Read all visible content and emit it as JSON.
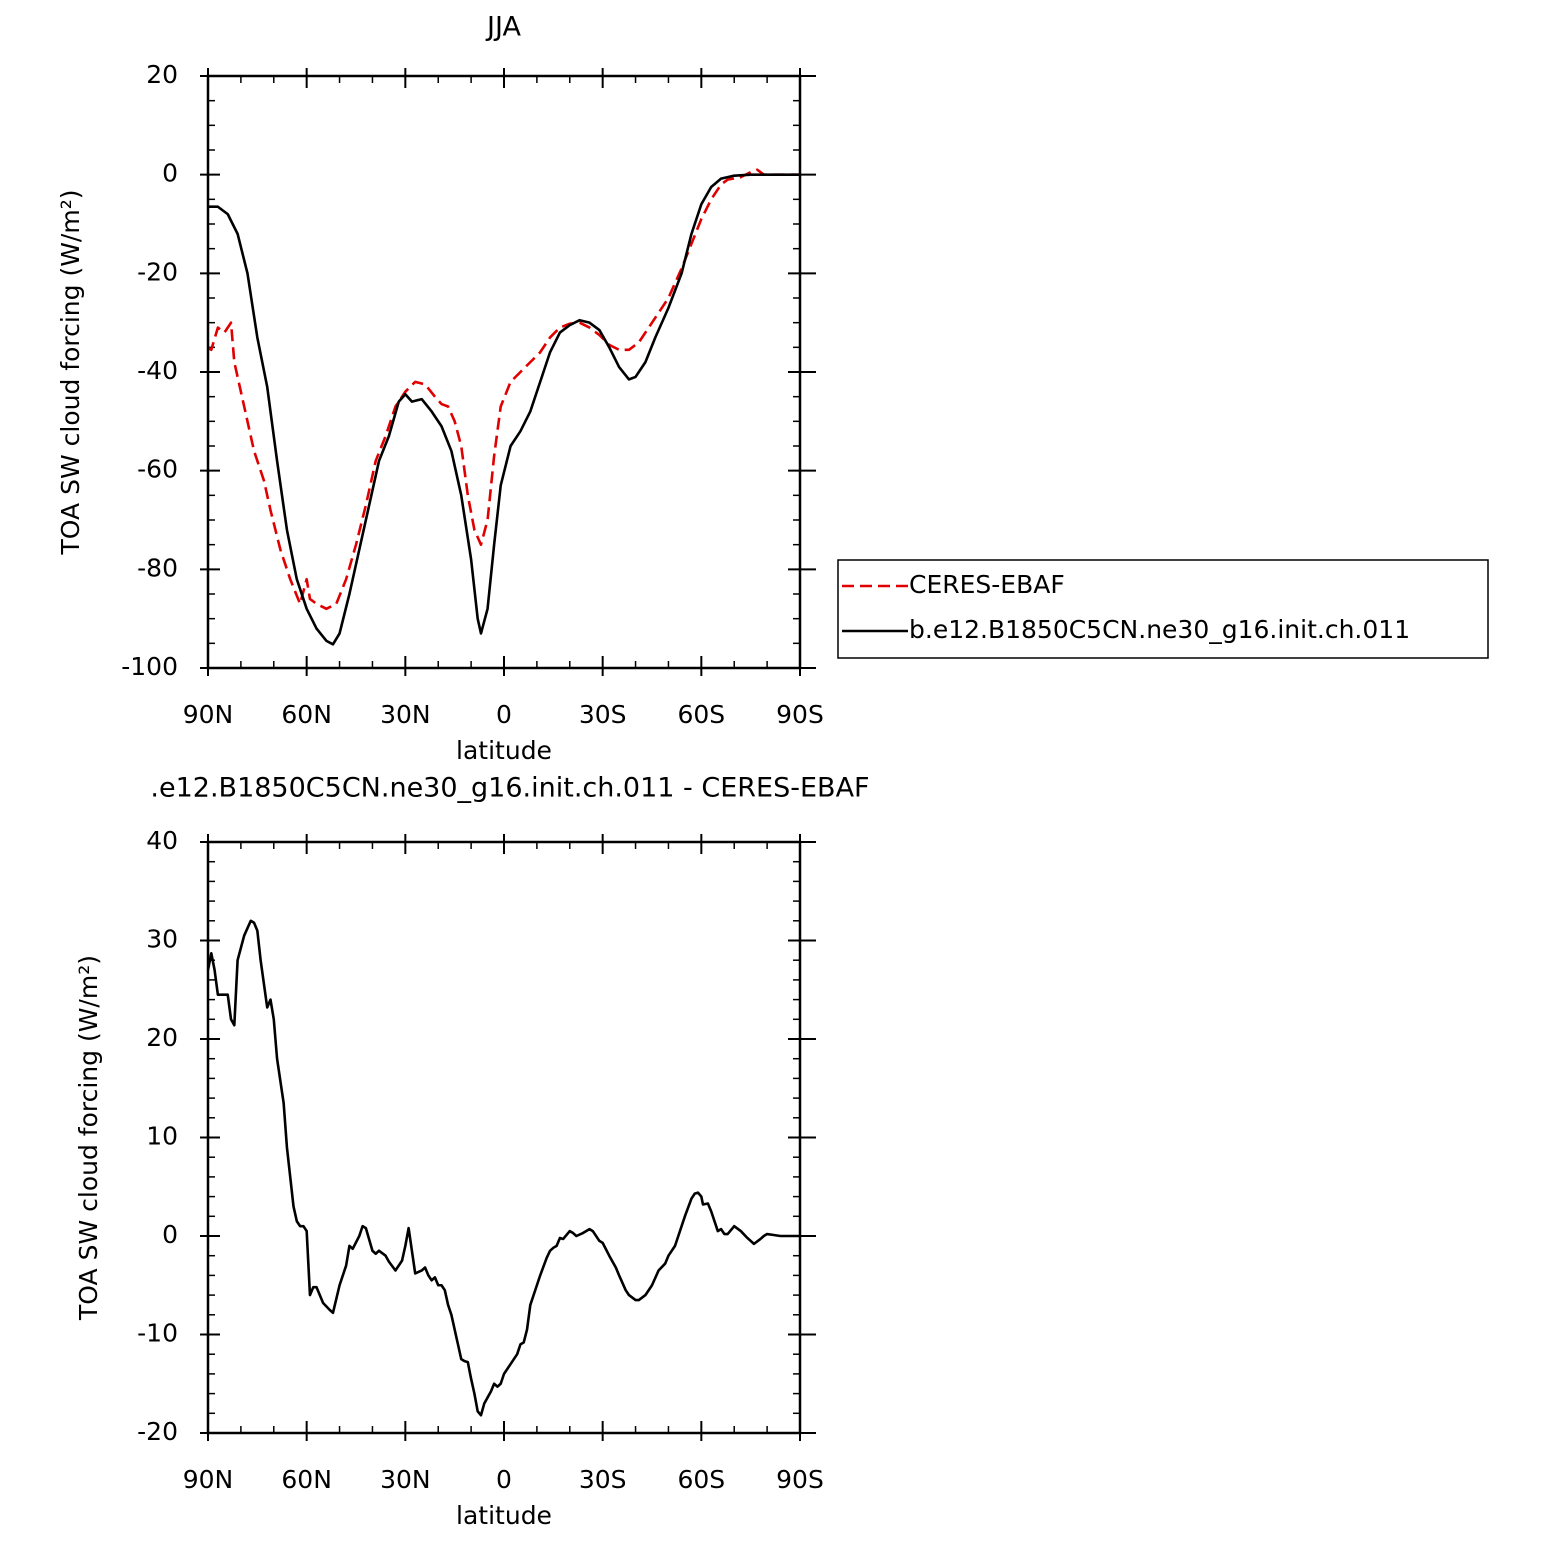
{
  "chart_data": [
    {
      "type": "line",
      "title": "JJA",
      "xlabel": "latitude",
      "ylabel": "TOA SW cloud forcing (W/m²)",
      "xlim": [
        90,
        -90
      ],
      "xticks": [
        {
          "value": 90,
          "label": "90N"
        },
        {
          "value": 60,
          "label": "60N"
        },
        {
          "value": 30,
          "label": "30N"
        },
        0,
        {
          "value": -30,
          "label": "30S"
        },
        {
          "value": -60,
          "label": "60S"
        },
        {
          "value": -90,
          "label": "90S"
        }
      ],
      "xminorticks": [
        80,
        70,
        50,
        40,
        20,
        10,
        -10,
        -20,
        -40,
        -50,
        -70,
        -80
      ],
      "ylim": [
        -100,
        20
      ],
      "yticks": [
        -100,
        -80,
        -60,
        -40,
        -20,
        0,
        20
      ],
      "yminorticks": [
        -95,
        -90,
        -85,
        -75,
        -70,
        -65,
        -55,
        -50,
        -45,
        -35,
        -30,
        -25,
        -15,
        -10,
        -5,
        5,
        10,
        15
      ],
      "legend": "right",
      "series": [
        {
          "name": "CERES-EBAF",
          "color": "#e00000",
          "linestyle": "dashed",
          "x": [
            90,
            89,
            87,
            85,
            83,
            82,
            79,
            76,
            73,
            71,
            68,
            65,
            62,
            60,
            59,
            57,
            54,
            51,
            48,
            45,
            42,
            39,
            36,
            33,
            30,
            27,
            24,
            21,
            19,
            17,
            15,
            13,
            11,
            9,
            7,
            5,
            3,
            1,
            -2,
            -5,
            -8,
            -11,
            -14,
            -17,
            -20,
            -23,
            -26,
            -29,
            -32,
            -35,
            -38,
            -41,
            -44,
            -47,
            -50,
            -54,
            -57,
            -60,
            -63,
            -66,
            -68,
            -72,
            -75,
            -77,
            -79,
            -90
          ],
          "values": [
            -35,
            -35.5,
            -31,
            -32,
            -30,
            -38,
            -47,
            -56,
            -62,
            -68,
            -76,
            -82,
            -87,
            -82,
            -86,
            -87,
            -88,
            -87,
            -82,
            -75,
            -67,
            -58,
            -53,
            -47,
            -44,
            -42,
            -42.5,
            -45,
            -46.5,
            -47,
            -50,
            -55,
            -65,
            -72,
            -75,
            -70,
            -57,
            -47,
            -42,
            -40,
            -38,
            -36,
            -33,
            -31,
            -30.2,
            -30,
            -31,
            -32.5,
            -34.5,
            -35.5,
            -35.5,
            -34,
            -31,
            -28,
            -25,
            -19,
            -14,
            -9,
            -5,
            -2,
            -1,
            -0.5,
            0.5,
            1,
            0,
            0
          ]
        },
        {
          "name": "b.e12.B1850C5CN.ne30_g16.init.ch.011",
          "color": "#000000",
          "linestyle": "solid",
          "x": [
            90,
            87,
            84,
            81,
            78,
            75,
            72,
            69,
            66,
            63,
            60,
            57,
            54,
            52,
            50,
            47,
            44,
            41,
            38,
            35,
            32,
            30,
            28,
            25,
            22,
            19,
            16,
            13,
            10,
            8,
            7,
            5,
            3,
            1,
            -2,
            -5,
            -8,
            -11,
            -14,
            -17,
            -20,
            -23,
            -26,
            -29,
            -32,
            -35,
            -38,
            -40,
            -43,
            -46,
            -50,
            -54,
            -57,
            -60,
            -63,
            -66,
            -70,
            -75,
            -80,
            -90
          ],
          "values": [
            -6.5,
            -6.5,
            -8,
            -12,
            -20,
            -33,
            -43,
            -58,
            -72,
            -82,
            -88,
            -92,
            -94.5,
            -95.2,
            -93,
            -85,
            -76,
            -67,
            -58,
            -53,
            -46,
            -44.5,
            -46,
            -45.5,
            -48,
            -51,
            -56,
            -65,
            -78,
            -90,
            -93,
            -88,
            -75,
            -63,
            -55,
            -52,
            -48,
            -42,
            -36,
            -32,
            -30.5,
            -29.5,
            -30,
            -31.5,
            -35,
            -39,
            -41.5,
            -41,
            -38,
            -33,
            -27,
            -20,
            -12,
            -6,
            -2.5,
            -0.8,
            -0.2,
            0,
            0,
            0
          ]
        }
      ]
    },
    {
      "type": "line",
      "title": ".e12.B1850C5CN.ne30_g16.init.ch.011 - CERES-EBAF",
      "xlabel": "latitude",
      "ylabel": "TOA SW cloud forcing (W/m²)",
      "xlim": [
        90,
        -90
      ],
      "xticks": [
        {
          "value": 90,
          "label": "90N"
        },
        {
          "value": 60,
          "label": "60N"
        },
        {
          "value": 30,
          "label": "30N"
        },
        0,
        {
          "value": -30,
          "label": "30S"
        },
        {
          "value": -60,
          "label": "60S"
        },
        {
          "value": -90,
          "label": "90S"
        }
      ],
      "xminorticks": [
        80,
        70,
        50,
        40,
        20,
        10,
        -10,
        -20,
        -40,
        -50,
        -70,
        -80
      ],
      "ylim": [
        -20,
        40
      ],
      "yticks": [
        -20,
        -10,
        0,
        10,
        20,
        30,
        40
      ],
      "yminorticks": [
        -18,
        -16,
        -14,
        -12,
        -8,
        -6,
        -4,
        -2,
        2,
        4,
        6,
        8,
        12,
        14,
        16,
        18,
        22,
        24,
        26,
        28,
        32,
        34,
        36,
        38
      ],
      "series": [
        {
          "color": "#000000",
          "linestyle": "solid",
          "x": [
            90,
            89,
            88,
            87,
            85,
            84,
            83,
            82,
            81,
            79,
            77,
            76,
            75,
            74,
            72,
            71,
            70,
            69,
            67,
            66,
            64,
            63,
            62,
            61,
            60,
            59,
            58,
            57,
            56,
            55,
            53,
            52,
            50,
            48,
            47,
            46,
            44,
            43,
            42,
            40,
            39,
            38,
            36,
            35,
            33,
            31,
            30,
            29,
            28,
            27,
            25,
            24,
            23,
            22,
            21,
            20,
            19,
            18,
            17,
            16,
            14,
            13,
            12,
            11,
            10,
            9,
            8,
            7,
            6,
            4,
            3,
            2,
            1,
            0,
            -2,
            -4,
            -5,
            -6,
            -7,
            -8,
            -9,
            -11,
            -13,
            -14,
            -15,
            -16,
            -17,
            -18,
            -20,
            -21,
            -22,
            -24,
            -26,
            -27,
            -29,
            -30,
            -32,
            -34,
            -35,
            -37,
            -38,
            -40,
            -41,
            -43,
            -45,
            -47,
            -49,
            -50,
            -52,
            -53,
            -55,
            -57,
            -58,
            -59,
            -60,
            -60.5,
            -62,
            -63,
            -64,
            -65,
            -66,
            -67,
            -68,
            -70,
            -72,
            -74,
            -76,
            -78,
            -79,
            -80,
            -82,
            -84,
            -90
          ],
          "values": [
            27,
            28.7,
            27,
            24.5,
            24.5,
            24.5,
            22,
            21.4,
            28,
            30.5,
            32,
            31.8,
            31,
            28,
            23.2,
            24,
            22,
            18,
            13.5,
            9,
            3,
            1.5,
            1,
            1,
            0.5,
            -6,
            -5.2,
            -5.2,
            -6,
            -6.8,
            -7.5,
            -7.8,
            -5,
            -3,
            -1,
            -1.3,
            0,
            1,
            0.8,
            -1.5,
            -1.8,
            -1.5,
            -2,
            -2.6,
            -3.5,
            -2.5,
            -1,
            0.8,
            -1.5,
            -3.8,
            -3.5,
            -3.2,
            -4,
            -4.5,
            -4.2,
            -5,
            -5,
            -5.5,
            -7,
            -8,
            -11,
            -12.5,
            -12.7,
            -12.8,
            -14.5,
            -16,
            -17.8,
            -18.2,
            -17,
            -15.8,
            -15,
            -15.3,
            -15,
            -14,
            -13,
            -12,
            -11,
            -10.8,
            -9.5,
            -7,
            -6,
            -4,
            -2.2,
            -1.5,
            -1.2,
            -1,
            -0.2,
            -0.3,
            0.5,
            0.3,
            0,
            0.3,
            0.7,
            0.5,
            -0.5,
            -0.7,
            -2,
            -3.2,
            -4,
            -5.5,
            -6,
            -6.5,
            -6.5,
            -6,
            -5,
            -3.5,
            -2.8,
            -2,
            -1,
            0,
            2,
            3.8,
            4.3,
            4.4,
            4,
            3.2,
            3.3,
            2.5,
            1.5,
            0.5,
            0.7,
            0.2,
            0.2,
            1,
            0.5,
            -0.2,
            -0.8,
            -0.3,
            0,
            0.2,
            0.1,
            0,
            0
          ]
        }
      ]
    }
  ]
}
